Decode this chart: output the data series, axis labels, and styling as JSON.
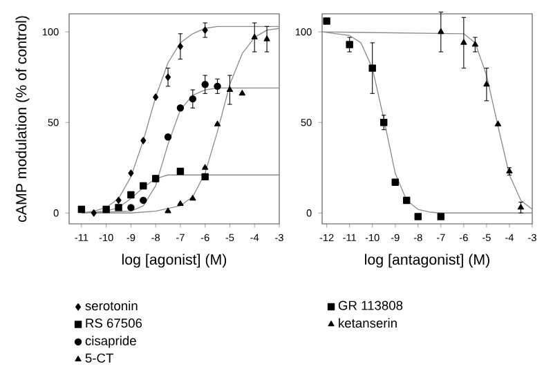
{
  "chart_data": [
    {
      "type": "scatter",
      "xlabel": "log [agonist] (M)",
      "ylabel": "cAMP modulation (% of control)",
      "xlim": [
        -11.5,
        -3
      ],
      "ylim": [
        -6,
        110
      ],
      "xticks": [
        -11,
        -10,
        -9,
        -8,
        -7,
        -6,
        -5,
        -4,
        -3
      ],
      "yticks": [
        0,
        50,
        100
      ],
      "legend": "bottom",
      "series": [
        {
          "name": "serotonin",
          "marker": "diamond",
          "color": "#000000",
          "x": [
            -10.5,
            -9.5,
            -9,
            -8.5,
            -8,
            -7.5,
            -7,
            -6
          ],
          "values": [
            0,
            7,
            22,
            40,
            64,
            75,
            92,
            101
          ],
          "errors": [
            null,
            null,
            null,
            null,
            null,
            5,
            7,
            4
          ]
        },
        {
          "name": "RS 67506",
          "marker": "square",
          "color": "#000000",
          "x": [
            -11,
            -10,
            -9.5,
            -9,
            -8.5,
            -8,
            -7,
            -6
          ],
          "values": [
            2,
            2,
            3,
            10,
            15,
            19,
            23,
            20
          ],
          "errors": [
            null,
            null,
            null,
            null,
            null,
            null,
            null,
            null
          ]
        },
        {
          "name": "cisapride",
          "marker": "circle",
          "color": "#000000",
          "x": [
            -9,
            -8.5,
            -8,
            -7.5,
            -7,
            -6.5,
            -6,
            -5.5
          ],
          "values": [
            3,
            7,
            19,
            42,
            58,
            63,
            71,
            70
          ],
          "errors": [
            null,
            null,
            null,
            null,
            null,
            5,
            5,
            4
          ]
        },
        {
          "name": "5-CT",
          "marker": "triangle",
          "color": "#000000",
          "x": [
            -7.5,
            -7,
            -6.5,
            -6,
            -5.5,
            -5,
            -4.5,
            -4,
            -3.5
          ],
          "values": [
            1,
            5,
            8,
            25,
            49,
            68,
            66,
            97,
            96
          ],
          "errors": [
            null,
            null,
            null,
            null,
            null,
            8,
            null,
            8,
            7
          ]
        },
        {
          "type": "line",
          "marker": "none",
          "color": "#8c8c8c",
          "x": [
            -11,
            -10.5,
            -10,
            -9.5,
            -9,
            -8.5,
            -8,
            -7.5,
            -7,
            -6.5,
            -6,
            -5.5,
            -5,
            -3
          ],
          "values": [
            0,
            1,
            3,
            8,
            20,
            40,
            64,
            83,
            94,
            99,
            102,
            103,
            103,
            103
          ]
        },
        {
          "type": "line",
          "marker": "none",
          "color": "#8c8c8c",
          "x": [
            -11,
            -10,
            -9.5,
            -9,
            -8.5,
            -8,
            -7.5,
            -7,
            -3
          ],
          "values": [
            0,
            1,
            3,
            8,
            14,
            19,
            21,
            21,
            21
          ]
        },
        {
          "type": "line",
          "marker": "none",
          "color": "#8c8c8c",
          "x": [
            -11,
            -9,
            -8.5,
            -8,
            -7.5,
            -7,
            -6.5,
            -6,
            -5.5,
            -3
          ],
          "values": [
            0,
            1,
            4,
            15,
            38,
            57,
            65,
            68,
            69,
            69
          ]
        },
        {
          "type": "line",
          "marker": "none",
          "color": "#8c8c8c",
          "x": [
            -10.5,
            -9,
            -8,
            -7,
            -6.5,
            -6,
            -5.5,
            -5,
            -4.5,
            -4,
            -3.5,
            -3
          ],
          "values": [
            0,
            0,
            1,
            4,
            9,
            22,
            45,
            71,
            88,
            97,
            101,
            102
          ]
        }
      ]
    },
    {
      "type": "scatter",
      "xlabel": "log [antagonist] (M)",
      "xlim": [
        -12.2,
        -3
      ],
      "ylim": [
        -6,
        110
      ],
      "xticks": [
        -12,
        -11,
        -10,
        -9,
        -8,
        -7,
        -6,
        -5,
        -4,
        -3
      ],
      "yticks": [
        0,
        50,
        100
      ],
      "legend": "bottom",
      "series": [
        {
          "name": "GR 113808",
          "marker": "square",
          "color": "#000000",
          "x": [
            -12,
            -11,
            -10,
            -9.5,
            -9,
            -8.5,
            -8,
            -7
          ],
          "values": [
            106,
            93,
            80,
            50,
            17,
            7,
            -2,
            -2
          ],
          "errors": [
            null,
            4,
            14,
            4,
            null,
            null,
            null,
            null
          ]
        },
        {
          "name": "ketanserin",
          "marker": "triangle",
          "color": "#000000",
          "x": [
            -7,
            -6,
            -5.5,
            -5,
            -4.5,
            -4,
            -3.5
          ],
          "values": [
            100,
            94,
            93,
            71,
            49,
            23,
            3
          ],
          "errors": [
            11,
            14,
            4,
            9,
            null,
            2,
            3
          ]
        },
        {
          "type": "line",
          "marker": "none",
          "color": "#8c8c8c",
          "x": [
            -12.2,
            -11,
            -10.5,
            -10,
            -9.5,
            -9,
            -8.5,
            -8,
            -7.5,
            -7,
            -3
          ],
          "values": [
            100,
            98,
            94,
            80,
            52,
            22,
            7,
            2,
            0.5,
            0,
            0
          ]
        },
        {
          "type": "line",
          "marker": "none",
          "color": "#8c8c8c",
          "x": [
            -12.2,
            -6,
            -5.5,
            -5,
            -4.5,
            -4,
            -3.5,
            -3
          ],
          "values": [
            100,
            99,
            94,
            76,
            48,
            21,
            7,
            2
          ]
        }
      ]
    }
  ]
}
